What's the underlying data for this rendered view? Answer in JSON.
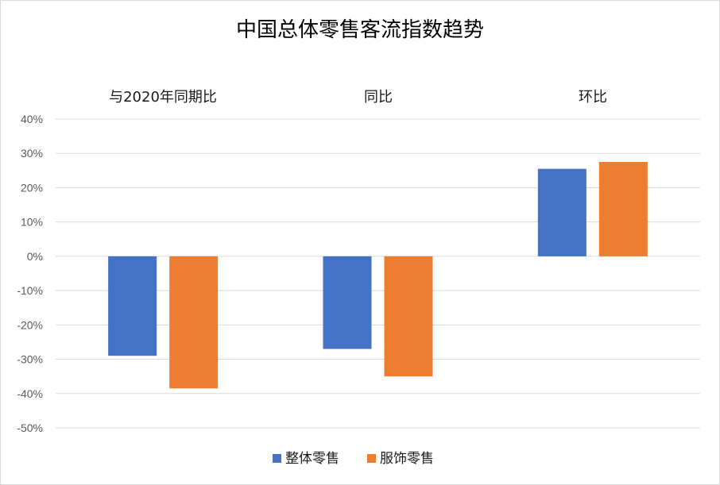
{
  "chart_data": {
    "type": "bar",
    "title": "中国总体零售客流指数趋势",
    "categories": [
      "与2020年同期比",
      "同比",
      "环比"
    ],
    "series": [
      {
        "name": "整体零售",
        "values": [
          -29,
          -27,
          25.5
        ],
        "color": "#4472C4"
      },
      {
        "name": "服饰零售",
        "values": [
          -38.5,
          -35,
          27.5
        ],
        "color": "#ED7D31"
      }
    ],
    "ylim": [
      -50,
      40
    ],
    "yticks": [
      40,
      30,
      20,
      10,
      0,
      -10,
      -20,
      -30,
      -40,
      -50
    ],
    "ytick_labels": [
      "40%",
      "30%",
      "20%",
      "10%",
      "0%",
      "-10%",
      "-20%",
      "-30%",
      "-40%",
      "-50%"
    ],
    "grid": true,
    "legend_position": "bottom",
    "category_label_position": "top"
  }
}
